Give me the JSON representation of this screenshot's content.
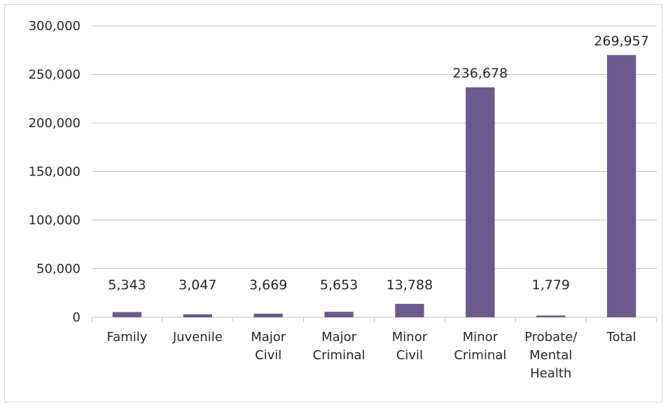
{
  "chart_data": {
    "type": "bar",
    "categories": [
      [
        "Family"
      ],
      [
        "Juvenile"
      ],
      [
        "Major",
        "Civil"
      ],
      [
        "Major",
        "Criminal"
      ],
      [
        "Minor",
        "Civil"
      ],
      [
        "Minor",
        "Criminal"
      ],
      [
        "Probate/",
        "Mental",
        "Health"
      ],
      [
        "Total"
      ]
    ],
    "values": [
      5343,
      3047,
      3669,
      5653,
      13788,
      236678,
      1779,
      269957
    ],
    "data_labels": [
      "5,343",
      "3,047",
      "3,669",
      "5,653",
      "13,788",
      "236,678",
      "1,779",
      "269,957"
    ],
    "y_ticks": [
      0,
      50000,
      100000,
      150000,
      200000,
      250000,
      300000
    ],
    "y_tick_labels": [
      "0",
      "50,000",
      "100,000",
      "150,000",
      "200,000",
      "250,000",
      "300,000"
    ],
    "ylim": [
      0,
      300000
    ],
    "title": "",
    "xlabel": "",
    "ylabel": "",
    "grid": true,
    "legend": "none",
    "bar_color": "#6c5a8c",
    "grid_color": "#bfbfbf"
  }
}
